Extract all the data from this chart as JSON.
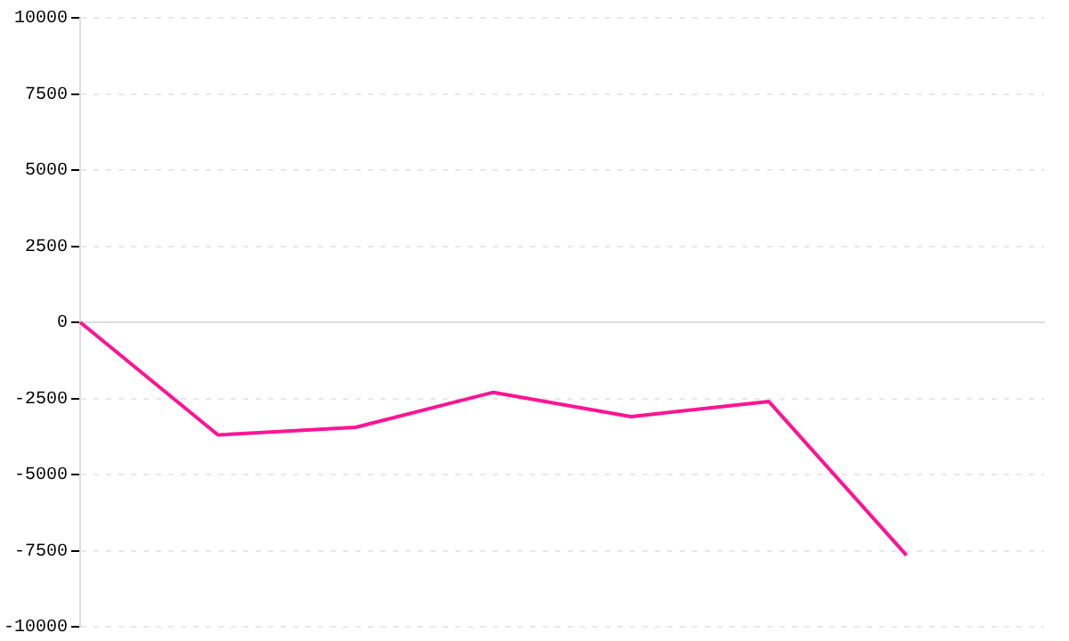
{
  "chart_data": {
    "type": "line",
    "categories": [
      null,
      null,
      null,
      null,
      null,
      null,
      null,
      null
    ],
    "series": [
      {
        "color": "#ff1493",
        "values": [
          0,
          -3700,
          -3450,
          -2300,
          -3100,
          -2600,
          -7650,
          null
        ]
      }
    ],
    "ylim": [
      -10000,
      10000
    ],
    "yticks": [
      -10000,
      -7500,
      -5000,
      -2500,
      0,
      2500,
      5000,
      7500,
      10000
    ],
    "tick_labels": "y",
    "grid": "y",
    "marker": "none",
    "line_style": "solid"
  }
}
